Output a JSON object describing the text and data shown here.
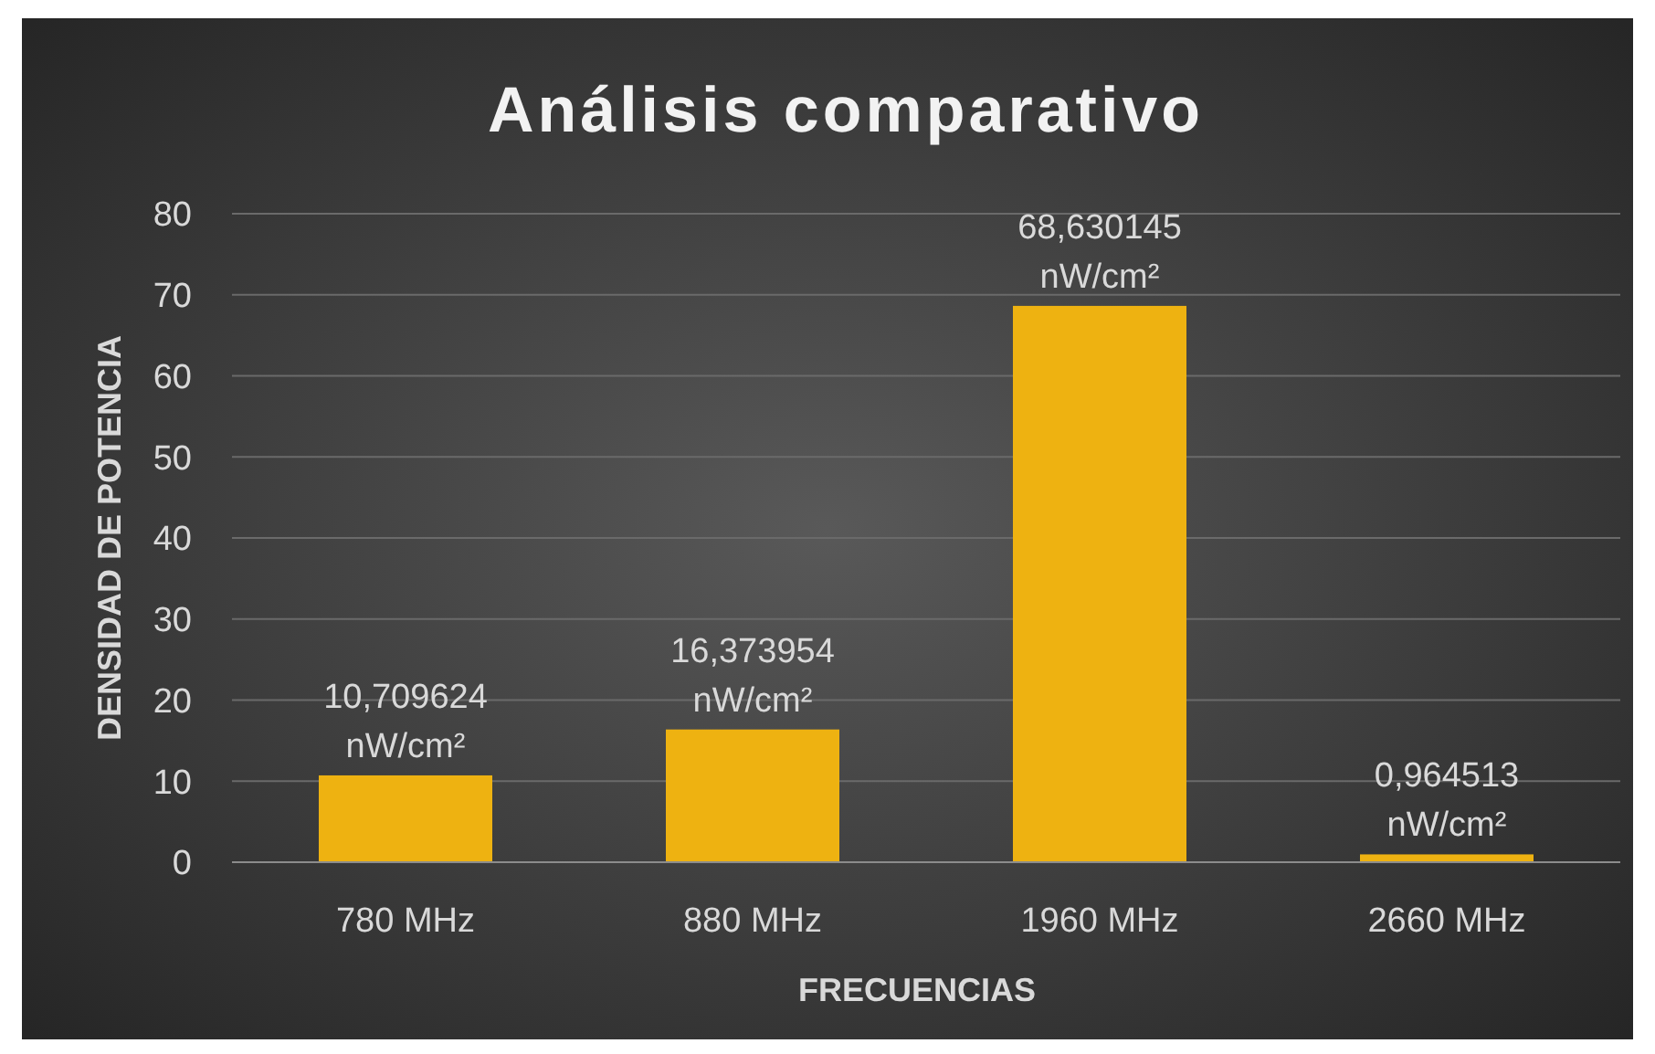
{
  "chart_data": {
    "type": "bar",
    "title": "Análisis comparativo",
    "xlabel": "FRECUENCIAS",
    "ylabel": "DENSIDAD DE POTENCIA",
    "categories": [
      "780 MHz",
      "880 MHz",
      "1960 MHz",
      "2660 MHz"
    ],
    "values": [
      10.709624,
      16.373954,
      68.630145,
      0.964513
    ],
    "value_labels": [
      "10,709624 nW/cm²",
      "16,373954 nW/cm²",
      "68,630145 nW/cm²",
      "0,964513 nW/cm²"
    ],
    "color": "#eeb211",
    "ylim": [
      0,
      80
    ],
    "yticks": [
      0,
      10,
      20,
      30,
      40,
      50,
      60,
      70,
      80
    ],
    "grid": "y"
  }
}
